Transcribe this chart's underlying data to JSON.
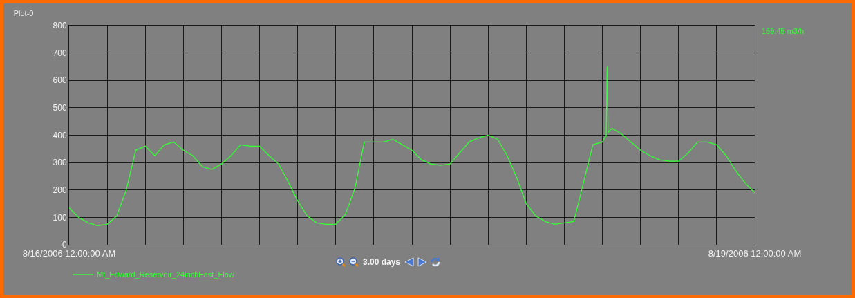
{
  "chart_data": {
    "type": "line",
    "title": "Plot-0",
    "x": [
      "2006-08-16T00:00",
      "2006-08-16T01:00",
      "2006-08-16T02:00",
      "2006-08-16T03:00",
      "2006-08-16T04:00",
      "2006-08-16T05:00",
      "2006-08-16T06:00",
      "2006-08-16T07:00",
      "2006-08-16T08:00",
      "2006-08-16T09:00",
      "2006-08-16T10:00",
      "2006-08-16T11:00",
      "2006-08-16T12:00",
      "2006-08-16T13:00",
      "2006-08-16T14:00",
      "2006-08-16T15:00",
      "2006-08-16T16:00",
      "2006-08-16T17:00",
      "2006-08-16T18:00",
      "2006-08-16T19:00",
      "2006-08-16T20:00",
      "2006-08-16T21:00",
      "2006-08-16T22:00",
      "2006-08-16T23:00",
      "2006-08-17T00:00",
      "2006-08-17T01:00",
      "2006-08-17T02:00",
      "2006-08-17T03:00",
      "2006-08-17T04:00",
      "2006-08-17T05:00",
      "2006-08-17T06:00",
      "2006-08-17T07:00",
      "2006-08-17T08:00",
      "2006-08-17T09:00",
      "2006-08-17T10:00",
      "2006-08-17T11:00",
      "2006-08-17T12:00",
      "2006-08-17T13:00",
      "2006-08-17T14:00",
      "2006-08-17T15:00",
      "2006-08-17T16:00",
      "2006-08-17T17:00",
      "2006-08-17T18:00",
      "2006-08-17T19:00",
      "2006-08-17T20:00",
      "2006-08-17T21:00",
      "2006-08-17T22:00",
      "2006-08-17T23:00",
      "2006-08-18T00:00",
      "2006-08-18T01:00",
      "2006-08-18T02:00",
      "2006-08-18T03:00",
      "2006-08-18T04:00",
      "2006-08-18T05:00",
      "2006-08-18T06:00",
      "2006-08-18T07:00",
      "2006-08-18T08:00",
      "2006-08-18T08:24",
      "2006-08-18T08:30",
      "2006-08-18T08:36",
      "2006-08-18T09:00",
      "2006-08-18T10:00",
      "2006-08-18T11:00",
      "2006-08-18T12:00",
      "2006-08-18T13:00",
      "2006-08-18T14:00",
      "2006-08-18T15:00",
      "2006-08-18T16:00",
      "2006-08-18T17:00",
      "2006-08-18T18:00",
      "2006-08-18T19:00",
      "2006-08-18T20:00",
      "2006-08-18T21:00",
      "2006-08-18T22:00",
      "2006-08-18T23:00",
      "2006-08-19T00:00"
    ],
    "series": [
      {
        "name": "Mt_Edward_Reservoir_24inchEast_Flow",
        "color": "#33ff33",
        "values": [
          135,
          100,
          80,
          70,
          75,
          105,
          200,
          345,
          360,
          325,
          365,
          375,
          345,
          325,
          285,
          275,
          295,
          325,
          365,
          360,
          360,
          325,
          295,
          230,
          160,
          105,
          80,
          75,
          75,
          110,
          205,
          375,
          375,
          375,
          385,
          365,
          345,
          310,
          295,
          290,
          295,
          335,
          375,
          390,
          400,
          385,
          325,
          245,
          150,
          105,
          85,
          75,
          80,
          85,
          225,
          365,
          375,
          400,
          650,
          410,
          425,
          405,
          375,
          345,
          325,
          310,
          305,
          305,
          335,
          375,
          375,
          365,
          325,
          270,
          225,
          190
        ]
      }
    ],
    "xlim": [
      "2006-08-16T00:00",
      "2006-08-19T00:00"
    ],
    "xticks": [
      {
        "value": "2006-08-16T00:00",
        "label": "8/16/2006 12:00:00 AM"
      },
      {
        "value": "2006-08-16T04:00",
        "label": null
      },
      {
        "value": "2006-08-16T08:00",
        "label": null
      },
      {
        "value": "2006-08-16T12:00",
        "label": null
      },
      {
        "value": "2006-08-16T16:00",
        "label": null
      },
      {
        "value": "2006-08-16T20:00",
        "label": null
      },
      {
        "value": "2006-08-17T00:00",
        "label": null
      },
      {
        "value": "2006-08-17T04:00",
        "label": null
      },
      {
        "value": "2006-08-17T08:00",
        "label": null
      },
      {
        "value": "2006-08-17T12:00",
        "label": null
      },
      {
        "value": "2006-08-17T16:00",
        "label": null
      },
      {
        "value": "2006-08-17T20:00",
        "label": null
      },
      {
        "value": "2006-08-18T00:00",
        "label": null
      },
      {
        "value": "2006-08-18T04:00",
        "label": null
      },
      {
        "value": "2006-08-18T08:00",
        "label": null
      },
      {
        "value": "2006-08-18T12:00",
        "label": null
      },
      {
        "value": "2006-08-18T16:00",
        "label": null
      },
      {
        "value": "2006-08-18T20:00",
        "label": null
      },
      {
        "value": "2006-08-19T00:00",
        "label": "8/19/2006 12:00:00 AM"
      }
    ],
    "ylim": [
      0,
      800
    ],
    "yticks": [
      0,
      100,
      200,
      300,
      400,
      500,
      600,
      700,
      800
    ],
    "grid": true,
    "legend": "bottom left",
    "marker": "none",
    "line_style": "solid",
    "annotations": [
      "169.45 m3/h",
      "3.00 days"
    ]
  }
}
